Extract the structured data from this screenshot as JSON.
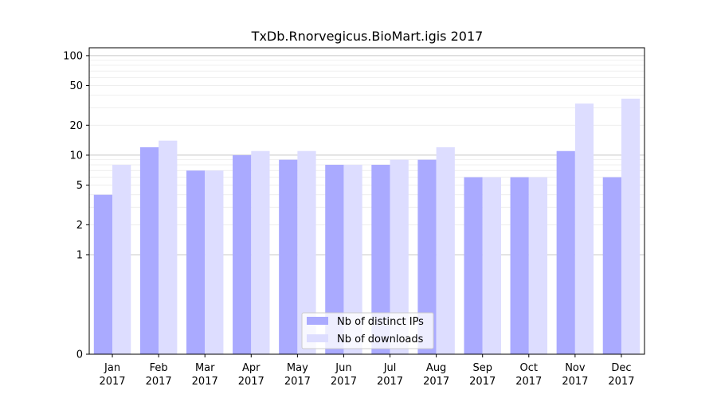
{
  "chart_data": {
    "type": "bar",
    "title": "TxDb.Rnorvegicus.BioMart.igis 2017",
    "xlabel": "",
    "ylabel": "",
    "y_scale": "symlog",
    "ylim": [
      0,
      120
    ],
    "categories": [
      {
        "month": "Jan",
        "year": "2017"
      },
      {
        "month": "Feb",
        "year": "2017"
      },
      {
        "month": "Mar",
        "year": "2017"
      },
      {
        "month": "Apr",
        "year": "2017"
      },
      {
        "month": "May",
        "year": "2017"
      },
      {
        "month": "Jun",
        "year": "2017"
      },
      {
        "month": "Jul",
        "year": "2017"
      },
      {
        "month": "Aug",
        "year": "2017"
      },
      {
        "month": "Sep",
        "year": "2017"
      },
      {
        "month": "Oct",
        "year": "2017"
      },
      {
        "month": "Nov",
        "year": "2017"
      },
      {
        "month": "Dec",
        "year": "2017"
      }
    ],
    "series": [
      {
        "name": "Nb of distinct IPs",
        "color": "#aaaaff",
        "values": [
          4,
          12,
          7,
          10,
          9,
          8,
          8,
          9,
          6,
          6,
          11,
          6
        ]
      },
      {
        "name": "Nb of downloads",
        "color": "#ddddff",
        "values": [
          8,
          14,
          7,
          11,
          11,
          8,
          9,
          12,
          6,
          6,
          33,
          37
        ]
      }
    ],
    "y_ticks": [
      {
        "value": 0,
        "label": "0"
      },
      {
        "value": 1,
        "label": "1"
      },
      {
        "value": 2,
        "label": "2"
      },
      {
        "value": 5,
        "label": "5"
      },
      {
        "value": 10,
        "label": "10"
      },
      {
        "value": 20,
        "label": "20"
      },
      {
        "value": 50,
        "label": "50"
      },
      {
        "value": 100,
        "label": "100"
      }
    ],
    "major_grid": [
      1,
      10,
      100
    ],
    "minor_grid": [
      2,
      3,
      4,
      5,
      6,
      7,
      8,
      9,
      20,
      30,
      40,
      50,
      60,
      70,
      80,
      90
    ],
    "legend": "bottom-center",
    "grid": true
  }
}
